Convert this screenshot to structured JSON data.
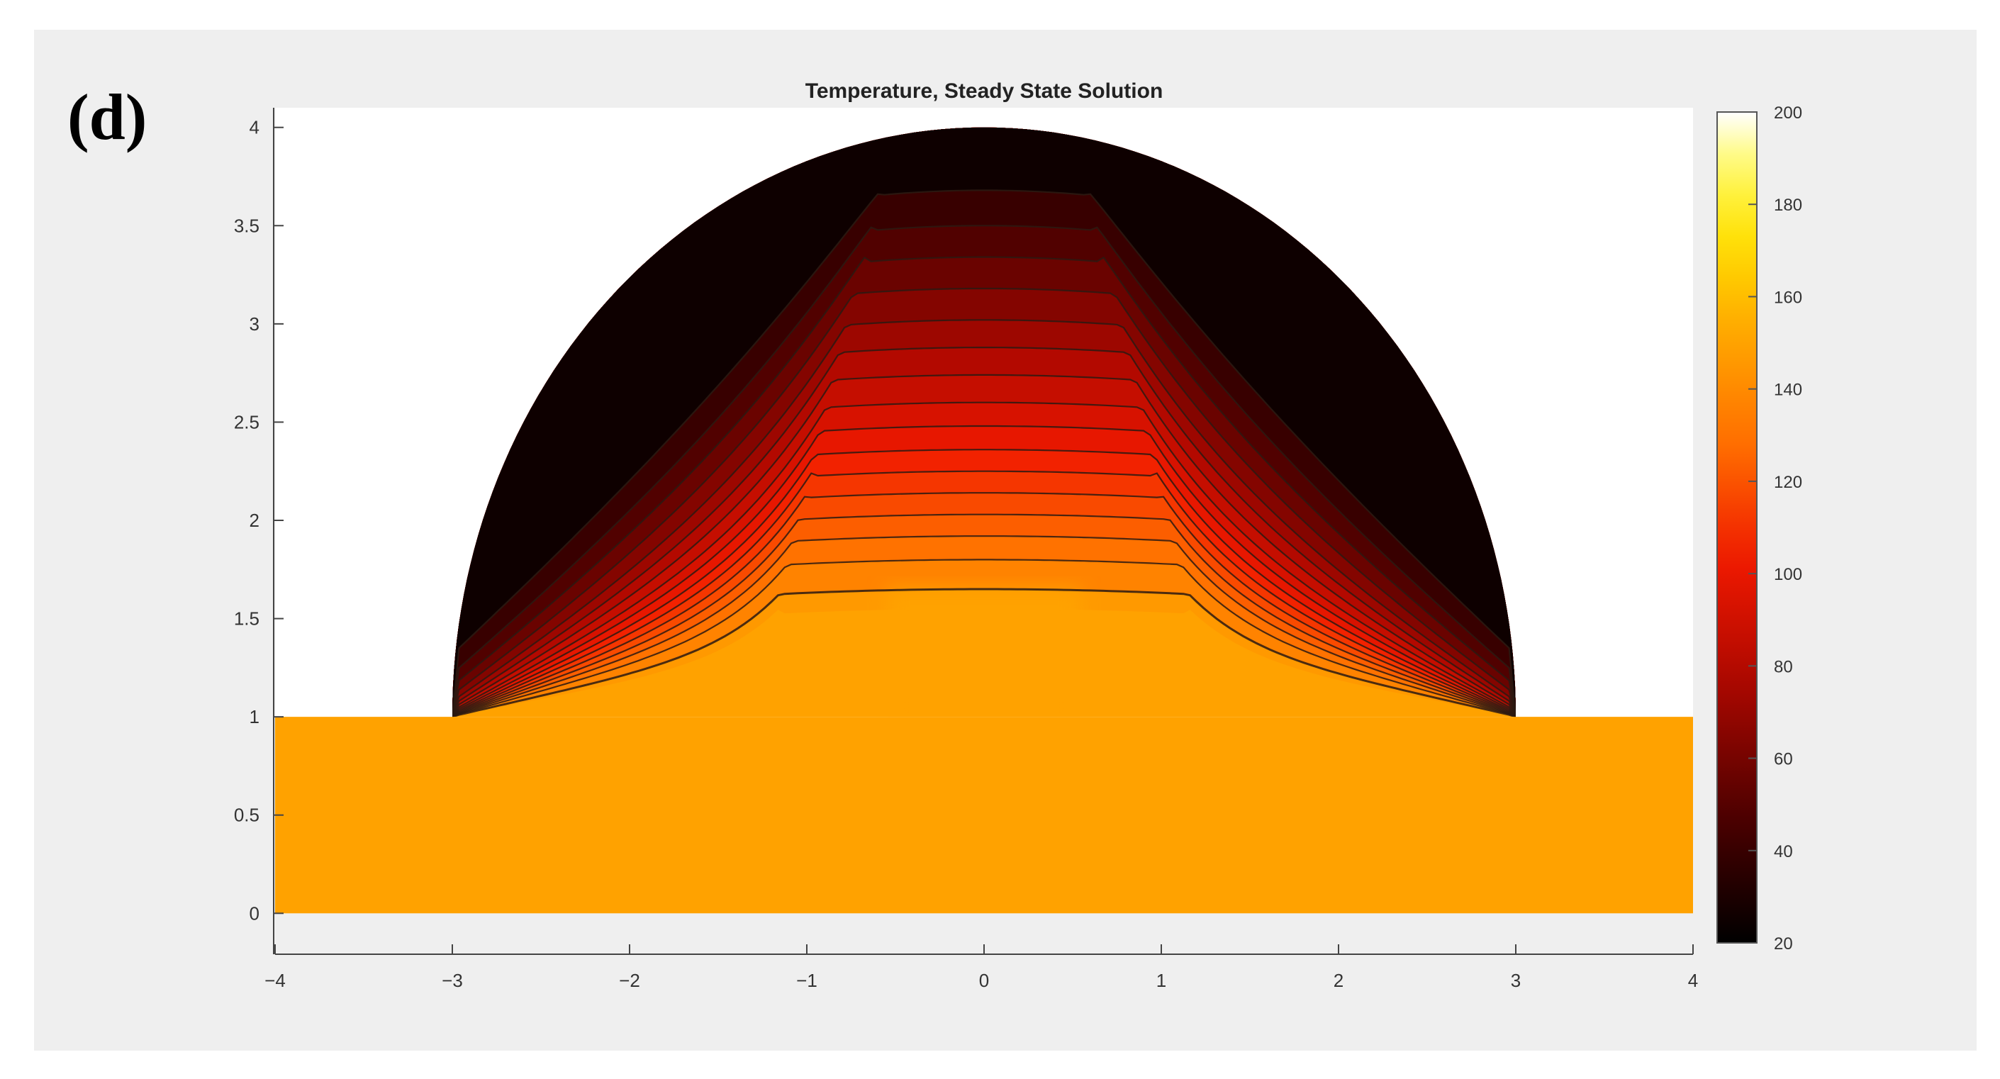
{
  "panel_label": "(d)",
  "chart_data": {
    "type": "heatmap",
    "title": "Temperature, Steady State Solution",
    "xlabel": "",
    "ylabel": "",
    "xlim": [
      -4,
      4
    ],
    "ylim": [
      -0.1,
      4.1
    ],
    "x_ticks": [
      "−4",
      "−3",
      "−2",
      "−1",
      "0",
      "1",
      "2",
      "3",
      "4"
    ],
    "x_tick_values": [
      -4,
      -3,
      -2,
      -1,
      0,
      1,
      2,
      3,
      4
    ],
    "y_ticks": [
      "0",
      "0.5",
      "1",
      "1.5",
      "2",
      "2.5",
      "3",
      "3.5",
      "4"
    ],
    "y_tick_values": [
      0,
      0.5,
      1,
      1.5,
      2,
      2.5,
      3,
      3.5,
      4
    ],
    "colorbar": {
      "label": "",
      "range": [
        20,
        200
      ],
      "ticks": [
        "20",
        "40",
        "60",
        "80",
        "100",
        "120",
        "140",
        "160",
        "180",
        "200"
      ],
      "tick_values": [
        20,
        40,
        60,
        80,
        100,
        120,
        140,
        160,
        180,
        200
      ],
      "colormap": "hot"
    },
    "regions": [
      {
        "name": "base slab",
        "x": [
          -4,
          4
        ],
        "y": [
          0,
          1
        ],
        "temperature": 150
      },
      {
        "name": "heat source",
        "x": [
          -0.55,
          0.55
        ],
        "y": [
          1,
          1.65
        ],
        "temperature": 150
      },
      {
        "name": "half-ellipse domain",
        "center": [
          0,
          1
        ],
        "semi_axis_x": 3,
        "semi_axis_y": 3,
        "boundary_temperature": 25
      }
    ],
    "contours": {
      "count": 16,
      "apex_heights": [
        1.65,
        1.8,
        1.92,
        2.03,
        2.14,
        2.25,
        2.36,
        2.48,
        2.6,
        2.74,
        2.88,
        3.02,
        3.18,
        3.34,
        3.5,
        3.68
      ],
      "color": "#2b1a12"
    },
    "grid": false
  }
}
